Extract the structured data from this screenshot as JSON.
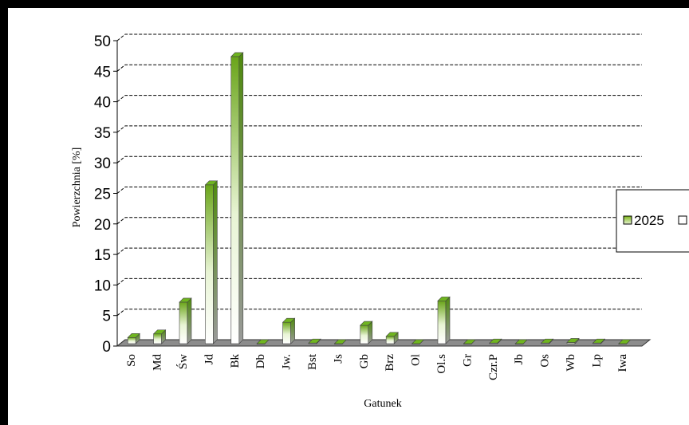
{
  "chart_data": {
    "type": "bar",
    "title": "",
    "xlabel": "Gatunek",
    "ylabel": "Powierzchnia [%]",
    "ylim": [
      0,
      50
    ],
    "yticks": [
      "0",
      "5",
      "10",
      "15",
      "20",
      "25",
      "30",
      "35",
      "40",
      "45",
      "50"
    ],
    "grid": true,
    "legend_position": "right",
    "categories": [
      "So",
      "Md",
      "Św",
      "Jd",
      "Bk",
      "Db",
      "Jw.",
      "Bst",
      "Js",
      "Gb",
      "Brz",
      "Ol",
      "Ol.s",
      "Gr",
      "Czr.P",
      "Jb",
      "Os",
      "Wb",
      "Lp",
      "Iwa"
    ],
    "series": [
      {
        "name": "2025",
        "color": "#7cb518",
        "values": [
          1.0,
          1.6,
          6.8,
          26.0,
          47.0,
          0,
          3.5,
          0.1,
          0,
          3.0,
          1.2,
          0,
          7.0,
          0,
          0.1,
          0,
          0.1,
          0.2,
          0.1,
          0
        ]
      }
    ],
    "legend": [
      "2025"
    ]
  }
}
